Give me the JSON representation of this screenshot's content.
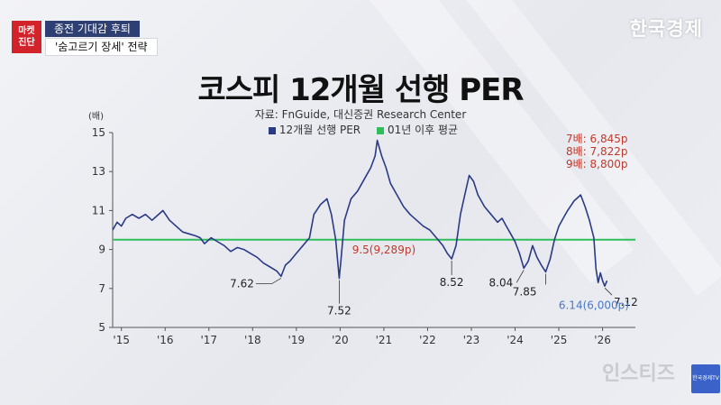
{
  "header": {
    "tag": [
      "마켓",
      "진단"
    ],
    "headline1": "종전 기대감 후퇴",
    "headline2": "'숨고르기 장세' 전략",
    "brand": "한국경제"
  },
  "watermark": "인스티즈",
  "logo_text": "한국경제TV",
  "chart_data": {
    "type": "line",
    "title": "코스피 12개월 선행 PER",
    "subtitle": "자료: FnGuide, 대신증권 Research Center",
    "ylabel": "(배)",
    "ylim": [
      5,
      15
    ],
    "yticks": [
      5,
      7,
      9,
      11,
      13,
      15
    ],
    "xlim": [
      2015.0,
      2026.95
    ],
    "xticks": [
      {
        "label": "'15",
        "x": 2015.2
      },
      {
        "label": "'16",
        "x": 2016.2
      },
      {
        "label": "'17",
        "x": 2017.2
      },
      {
        "label": "'18",
        "x": 2018.2
      },
      {
        "label": "'19",
        "x": 2019.2
      },
      {
        "label": "'20",
        "x": 2020.2
      },
      {
        "label": "'21",
        "x": 2021.2
      },
      {
        "label": "'22",
        "x": 2022.2
      },
      {
        "label": "'23",
        "x": 2023.2
      },
      {
        "label": "'24",
        "x": 2024.2
      },
      {
        "label": "'25",
        "x": 2025.2
      },
      {
        "label": "'26",
        "x": 2026.2
      }
    ],
    "legend": [
      "12개월 선행 PER",
      "01년 이후 평균"
    ],
    "colors": {
      "per": "#2b3a85",
      "avg": "#2fbf5a",
      "red": "#c0392b",
      "blue": "#4a78c7"
    },
    "series": [
      {
        "name": "12개월 선행 PER",
        "x": [
          2015.0,
          2015.1,
          2015.2,
          2015.3,
          2015.45,
          2015.6,
          2015.75,
          2015.9,
          2016.0,
          2016.15,
          2016.3,
          2016.45,
          2016.6,
          2016.75,
          2016.9,
          2017.0,
          2017.1,
          2017.25,
          2017.4,
          2017.55,
          2017.7,
          2017.85,
          2018.0,
          2018.15,
          2018.3,
          2018.45,
          2018.6,
          2018.75,
          2018.85,
          2018.95,
          2019.05,
          2019.2,
          2019.35,
          2019.5,
          2019.6,
          2019.75,
          2019.9,
          2020.0,
          2020.1,
          2020.18,
          2020.22,
          2020.3,
          2020.45,
          2020.6,
          2020.75,
          2020.9,
          2021.0,
          2021.05,
          2021.15,
          2021.25,
          2021.35,
          2021.5,
          2021.65,
          2021.8,
          2021.95,
          2022.1,
          2022.25,
          2022.4,
          2022.55,
          2022.65,
          2022.75,
          2022.85,
          2022.95,
          2023.05,
          2023.15,
          2023.25,
          2023.35,
          2023.5,
          2023.65,
          2023.8,
          2023.9,
          2024.0,
          2024.1,
          2024.2,
          2024.3,
          2024.4,
          2024.5,
          2024.6,
          2024.7,
          2024.8,
          2024.9,
          2025.0,
          2025.1,
          2025.2,
          2025.3,
          2025.4,
          2025.55,
          2025.7,
          2025.8,
          2025.9,
          2026.0,
          2026.05,
          2026.1,
          2026.15,
          2026.2,
          2026.25,
          2026.3
        ],
        "y": [
          10.0,
          10.4,
          10.2,
          10.6,
          10.8,
          10.6,
          10.8,
          10.5,
          10.7,
          11.0,
          10.5,
          10.2,
          9.9,
          9.8,
          9.7,
          9.6,
          9.3,
          9.6,
          9.4,
          9.2,
          8.9,
          9.1,
          9.0,
          8.8,
          8.6,
          8.3,
          8.1,
          7.9,
          7.62,
          8.2,
          8.4,
          8.8,
          9.2,
          9.6,
          10.8,
          11.3,
          11.6,
          10.8,
          9.5,
          7.52,
          8.5,
          10.5,
          11.6,
          12.0,
          12.6,
          13.2,
          13.8,
          14.6,
          13.8,
          13.2,
          12.4,
          11.8,
          11.2,
          10.8,
          10.5,
          10.2,
          10.0,
          9.6,
          9.2,
          8.8,
          8.52,
          9.2,
          10.8,
          11.8,
          12.8,
          12.5,
          11.8,
          11.2,
          10.8,
          10.4,
          10.6,
          10.2,
          9.8,
          9.4,
          8.8,
          8.04,
          8.4,
          9.2,
          8.6,
          8.2,
          7.85,
          8.5,
          9.5,
          10.2,
          10.6,
          11.0,
          11.5,
          11.8,
          11.2,
          10.5,
          9.6,
          8.0,
          7.3,
          7.8,
          7.4,
          7.12,
          7.4
        ]
      },
      {
        "name": "01년 이후 평균",
        "value": 9.5
      }
    ],
    "annotations": [
      {
        "text": "7.62",
        "x": 2018.85,
        "y": 7.62
      },
      {
        "text": "7.52",
        "x": 2020.18,
        "y": 7.52
      },
      {
        "text": "8.52",
        "x": 2022.75,
        "y": 8.52
      },
      {
        "text": "8.04",
        "x": 2024.4,
        "y": 8.04
      },
      {
        "text": "7.85",
        "x": 2024.9,
        "y": 7.85
      },
      {
        "text": "7.12",
        "x": 2026.25,
        "y": 7.12
      },
      {
        "text": "9.5(9,289p)",
        "x": 2021.2,
        "y": 9.5
      },
      {
        "text": "6.14(6,000p)",
        "x": 2026.0,
        "y": 6.14
      }
    ],
    "targets": [
      "7배: 6,845p",
      "8배: 7,822p",
      "9배: 8,800p"
    ]
  }
}
